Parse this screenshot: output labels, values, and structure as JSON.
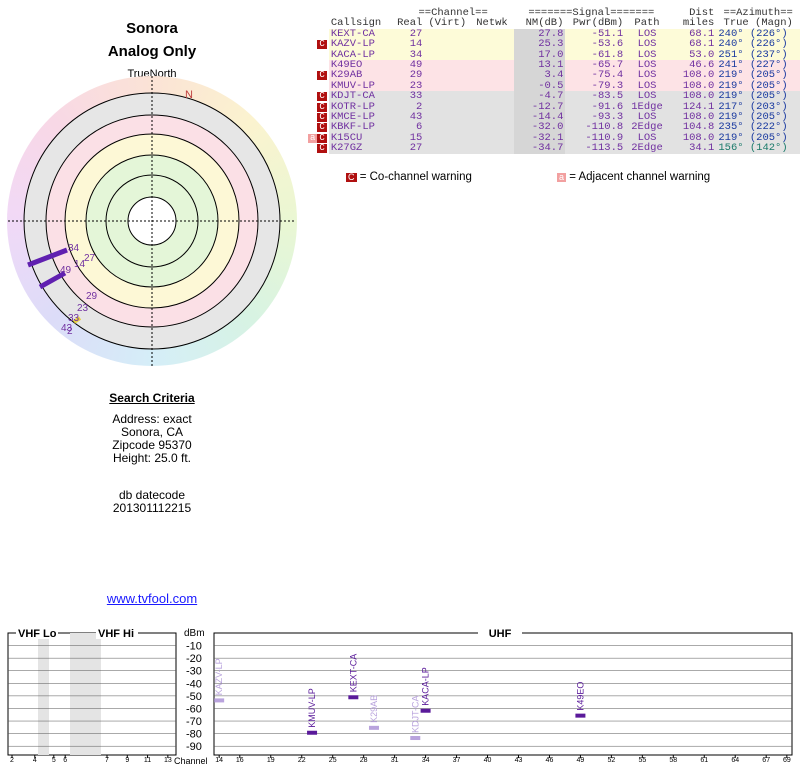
{
  "header": {
    "title": "Sonora",
    "subtitle": "Analog Only"
  },
  "polar": {
    "north_label": "TrueNorth",
    "n_marker": "N",
    "labels": [
      "34",
      "27",
      "49",
      "14",
      "29",
      "23",
      "33",
      "43",
      "2"
    ]
  },
  "criteria": {
    "title": "Search Criteria",
    "lines": [
      "Address: exact",
      "Sonora, CA",
      "Zipcode 95370",
      "Height: 25.0 ft."
    ],
    "datecode_label": "db datecode",
    "datecode": "201301112215",
    "link": "www.tvfool.com"
  },
  "table": {
    "group_headers": [
      "==Channel==",
      "=======Signal=======",
      "Dist",
      "==Azimuth=="
    ],
    "columns": [
      "Callsign",
      "Real",
      "(Virt)",
      "Netwk",
      "NM(dB)",
      "Pwr(dBm)",
      "Path",
      "miles",
      "True (Magn)"
    ],
    "rows": [
      {
        "callsign": "KEXT-CA",
        "real": "27",
        "nm": "27.8",
        "pwr": "-51.1",
        "path": "LOS",
        "dist": "68.1",
        "azimuth": "240° (226°)"
      },
      {
        "flag": "C",
        "callsign": "KAZV-LP",
        "real": "14",
        "nm": "25.3",
        "pwr": "-53.6",
        "path": "LOS",
        "dist": "68.1",
        "azimuth": "240° (226°)"
      },
      {
        "callsign": "KACA-LP",
        "real": "34",
        "nm": "17.0",
        "pwr": "-61.8",
        "path": "LOS",
        "dist": "53.0",
        "azimuth": "251° (237°)"
      },
      {
        "callsign": "K49EO",
        "real": "49",
        "nm": "13.1",
        "pwr": "-65.7",
        "path": "LOS",
        "dist": "46.6",
        "azimuth": "241° (227°)"
      },
      {
        "flag": "C",
        "callsign": "K29AB",
        "real": "29",
        "nm": "3.4",
        "pwr": "-75.4",
        "path": "LOS",
        "dist": "108.0",
        "azimuth": "219° (205°)"
      },
      {
        "callsign": "KMUV-LP",
        "real": "23",
        "nm": "-0.5",
        "pwr": "-79.3",
        "path": "LOS",
        "dist": "108.0",
        "azimuth": "219° (205°)"
      },
      {
        "flag": "C",
        "callsign": "KDJT-CA",
        "real": "33",
        "nm": "-4.7",
        "pwr": "-83.5",
        "path": "LOS",
        "dist": "108.0",
        "azimuth": "219° (205°)"
      },
      {
        "flag": "C",
        "callsign": "KOTR-LP",
        "real": "2",
        "nm": "-12.7",
        "pwr": "-91.6",
        "path": "1Edge",
        "dist": "124.1",
        "azimuth": "217° (203°)"
      },
      {
        "flag": "C",
        "callsign": "KMCE-LP",
        "real": "43",
        "nm": "-14.4",
        "pwr": "-93.3",
        "path": "LOS",
        "dist": "108.0",
        "azimuth": "219° (205°)"
      },
      {
        "flag": "C",
        "callsign": "KBKF-LP",
        "real": "6",
        "nm": "-32.0",
        "pwr": "-110.8",
        "path": "2Edge",
        "dist": "104.8",
        "azimuth": "235° (222°)"
      },
      {
        "adj": "a",
        "flag": "C",
        "callsign": "K15CU",
        "real": "15",
        "nm": "-32.1",
        "pwr": "-110.9",
        "path": "LOS",
        "dist": "108.0",
        "azimuth": "219° (205°)"
      },
      {
        "flag": "C",
        "callsign": "K27GZ",
        "real": "27",
        "nm": "-34.7",
        "pwr": "-113.5",
        "path": "2Edge",
        "dist": "34.1",
        "azimuth": "156° (142°)"
      }
    ]
  },
  "legend": {
    "co_flag": "C",
    "co_text": "= Co-channel warning",
    "adj_flag": "a",
    "adj_text": "= Adjacent channel warning"
  },
  "spectrum": {
    "type": "spectrum",
    "bands": [
      "VHF Lo",
      "VHF Hi",
      "UHF"
    ],
    "y_label": "dBm",
    "x_label": "Channel",
    "ylim": [
      0,
      -97
    ],
    "yticks": [
      -10,
      -20,
      -30,
      -40,
      -50,
      -60,
      -70,
      -80,
      -90
    ],
    "vhf_ticks": [
      2,
      4,
      5,
      6,
      7,
      9,
      11,
      13
    ],
    "uhf_xlim": [
      13.5,
      69.5
    ],
    "uhf_ticks": [
      14,
      16,
      19,
      22,
      25,
      28,
      31,
      34,
      37,
      40,
      43,
      46,
      49,
      52,
      55,
      58,
      61,
      64,
      67,
      69
    ],
    "stations": [
      {
        "name": "KAZV-LP",
        "channel": 14,
        "power": -53.6,
        "color": "#b9a3dd"
      },
      {
        "name": "KMUV-LP",
        "channel": 23,
        "power": -79.3,
        "color": "#5a1a9a"
      },
      {
        "name": "KEXT-CA",
        "channel": 27,
        "power": -51.1,
        "color": "#5a1a9a"
      },
      {
        "name": "K29AB",
        "channel": 29,
        "power": -75.4,
        "color": "#b9a3dd"
      },
      {
        "name": "KDJT-CA",
        "channel": 33,
        "power": -83.5,
        "color": "#b9a3dd"
      },
      {
        "name": "KACA-LP",
        "channel": 34,
        "power": -61.8,
        "color": "#5a1a9a"
      },
      {
        "name": "K49EO",
        "channel": 49,
        "power": -65.7,
        "color": "#5a1a9a"
      }
    ]
  }
}
